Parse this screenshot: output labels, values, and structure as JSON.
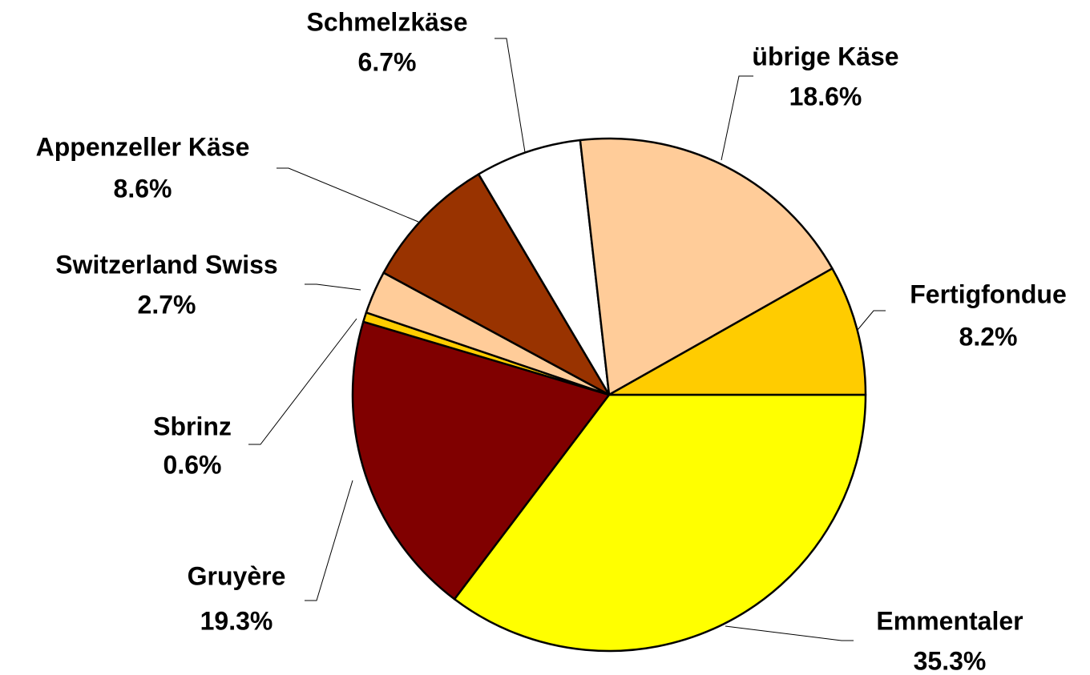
{
  "chart_data": {
    "type": "pie",
    "categories": [
      "Emmentaler",
      "Gruyère",
      "Sbrinz",
      "Switzerland Swiss",
      "Appenzeller Käse",
      "Schmelzkäse",
      "übrige Käse",
      "Fertigfondue"
    ],
    "values": [
      35.3,
      19.3,
      0.6,
      2.7,
      8.6,
      6.7,
      18.6,
      8.2
    ],
    "value_labels": [
      "35.3%",
      "19.3%",
      "0.6%",
      "2.7%",
      "8.6%",
      "6.7%",
      "18.6%",
      "8.2%"
    ],
    "colors": [
      "#ffff00",
      "#800000",
      "#ffcc00",
      "#ffcc99",
      "#993300",
      "#ffffff",
      "#ffcc99",
      "#ffcc00"
    ]
  }
}
